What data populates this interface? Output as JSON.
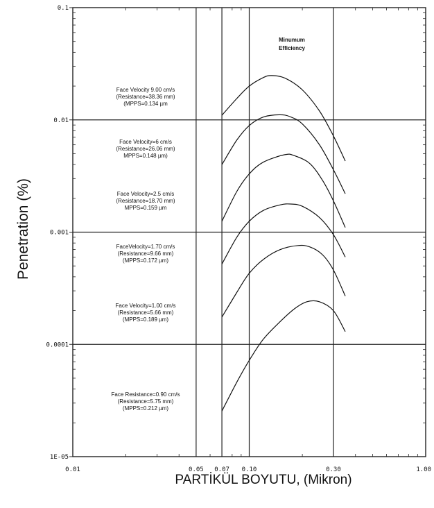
{
  "chart_data": {
    "type": "line",
    "title": "",
    "xlabel": "PARTİKÜL BOYUTU, (Mikron)",
    "ylabel": "Penetration (%)",
    "xscale": "log",
    "yscale": "log",
    "xlim": [
      0.01,
      1.0
    ],
    "ylim": [
      1e-05,
      0.1
    ],
    "x_ticks": [
      {
        "value": 0.01,
        "label": "0.01"
      },
      {
        "value": 0.05,
        "label": "0.05"
      },
      {
        "value": 0.07,
        "label": "0.07"
      },
      {
        "value": 0.1,
        "label": "0.10"
      },
      {
        "value": 0.3,
        "label": "0.30"
      },
      {
        "value": 1.0,
        "label": "1.00"
      }
    ],
    "y_ticks": [
      {
        "value": 0.1,
        "label": "0.1"
      },
      {
        "value": 0.01,
        "label": "0.01"
      },
      {
        "value": 0.001,
        "label": "0.001"
      },
      {
        "value": 0.0001,
        "label": "0.0001"
      },
      {
        "value": 1e-05,
        "label": "1E-05"
      }
    ],
    "vertical_gridlines_at": [
      0.05,
      0.07,
      0.1,
      0.3
    ],
    "horizontal_gridlines_at": [
      0.01,
      0.001,
      0.0001
    ],
    "region_label": [
      "Minumum",
      "Efficiency"
    ],
    "series": [
      {
        "annotation": [
          "Face Velocity 9.00 cm/s",
          "(Resistance=38.36 mm)",
          "(MPPS=0.134 µm"
        ],
        "x": [
          0.07,
          0.085,
          0.1,
          0.12,
          0.134,
          0.16,
          0.2,
          0.25,
          0.3,
          0.35
        ],
        "y": [
          0.011,
          0.0155,
          0.02,
          0.0238,
          0.0248,
          0.0235,
          0.0185,
          0.012,
          0.0072,
          0.0043
        ]
      },
      {
        "annotation": [
          "Face Velocity=6 cm/s",
          "(Resistance=26.06 mm)",
          "MPPS=0.148 µm)"
        ],
        "x": [
          0.07,
          0.085,
          0.1,
          0.12,
          0.148,
          0.17,
          0.2,
          0.25,
          0.3,
          0.35
        ],
        "y": [
          0.004,
          0.0066,
          0.0089,
          0.0106,
          0.0111,
          0.0107,
          0.0092,
          0.006,
          0.0036,
          0.0022
        ]
      },
      {
        "annotation": [
          "Face Velocity=2.5 cm/s",
          "(Resistance=18.70 mm)",
          "MPPS=0.159 µm"
        ],
        "x": [
          0.07,
          0.085,
          0.1,
          0.12,
          0.159,
          0.18,
          0.22,
          0.26,
          0.3,
          0.35
        ],
        "y": [
          0.00125,
          0.0023,
          0.0033,
          0.0042,
          0.0049,
          0.0048,
          0.0041,
          0.0029,
          0.0019,
          0.0011
        ]
      },
      {
        "annotation": [
          "FaceVelocity=1.70 cm/s",
          "(Resistance=9.66 mm)",
          "(MPPS=0.172 µm)"
        ],
        "x": [
          0.07,
          0.085,
          0.1,
          0.12,
          0.15,
          0.172,
          0.2,
          0.25,
          0.3,
          0.35
        ],
        "y": [
          0.00052,
          0.0009,
          0.00125,
          0.00156,
          0.00175,
          0.00178,
          0.0017,
          0.00135,
          0.00095,
          0.0006
        ]
      },
      {
        "annotation": [
          "Face Velocity=1.00 cm/s",
          "(Resistance=5.66 mm)",
          "(MPPS=0.189 µm)"
        ],
        "x": [
          0.07,
          0.085,
          0.1,
          0.12,
          0.15,
          0.189,
          0.22,
          0.26,
          0.3,
          0.35
        ],
        "y": [
          0.000175,
          0.00029,
          0.00043,
          0.00057,
          0.0007,
          0.00076,
          0.00074,
          0.00063,
          0.00046,
          0.00027
        ]
      },
      {
        "annotation": [
          "Face Resistance=0.90 cm/s",
          "(Resistance=5.75 mm)",
          "(MPPS=0.212 µm)"
        ],
        "x": [
          0.07,
          0.085,
          0.1,
          0.12,
          0.15,
          0.18,
          0.212,
          0.25,
          0.3,
          0.35
        ],
        "y": [
          2.55e-05,
          4.6e-05,
          7.2e-05,
          0.000111,
          0.00016,
          0.000207,
          0.00024,
          0.00024,
          0.0002,
          0.00013
        ]
      }
    ],
    "grid": true,
    "legend": "none"
  }
}
